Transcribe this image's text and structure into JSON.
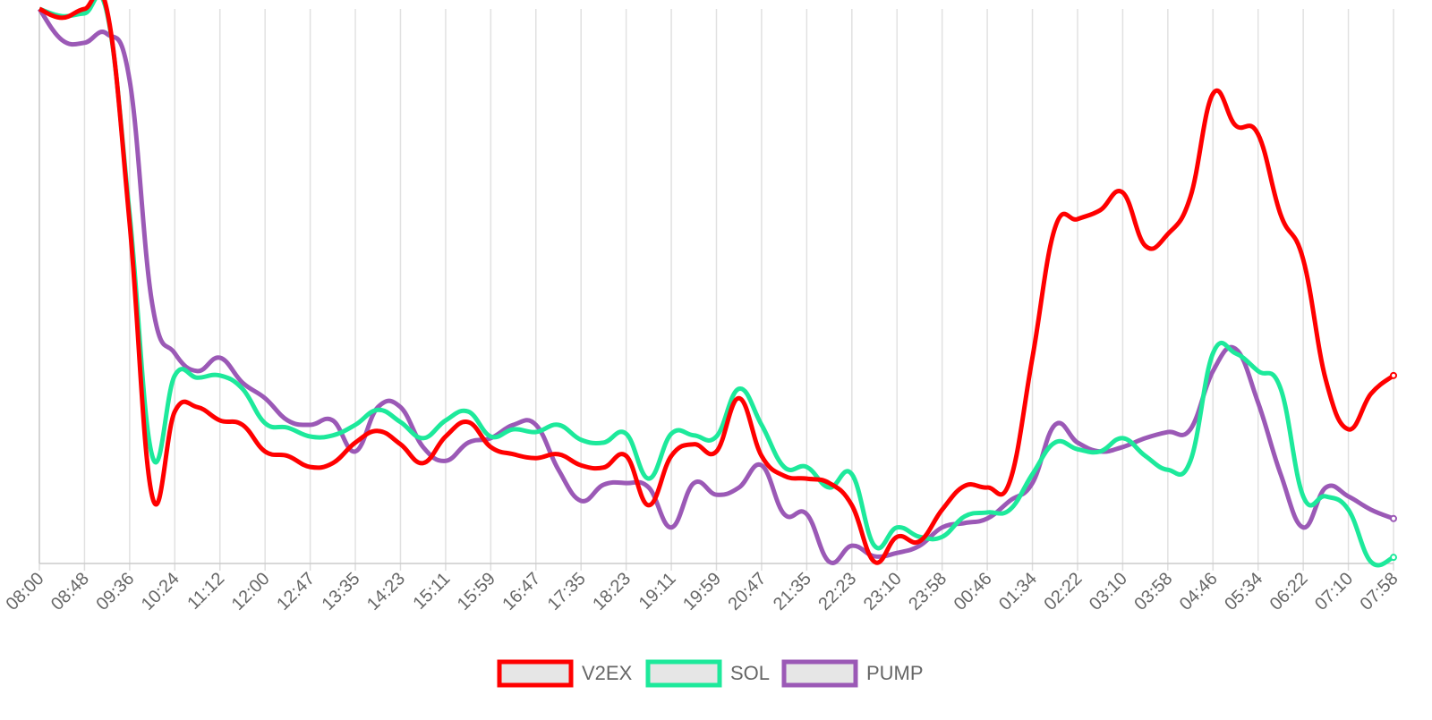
{
  "chart_data": {
    "type": "line",
    "categories": [
      "08:00",
      null,
      "08:48",
      null,
      "09:36",
      null,
      "10:24",
      null,
      "11:12",
      null,
      "12:00",
      null,
      "12:47",
      null,
      "13:35",
      null,
      "14:23",
      null,
      "15:11",
      null,
      "15:59",
      null,
      "16:47",
      null,
      "17:35",
      null,
      "18:23",
      null,
      "19:11",
      null,
      "19:59",
      null,
      "20:47",
      null,
      "21:35",
      null,
      "22:23",
      null,
      "23:10",
      null,
      "23:58",
      null,
      "00:46",
      null,
      "01:34",
      null,
      "02:22",
      null,
      "03:10",
      null,
      "03:58",
      null,
      "04:46",
      null,
      "05:34",
      null,
      "06:22",
      null,
      "07:10",
      null,
      "07:58"
    ],
    "ylim": [
      0,
      100
    ],
    "grid": true,
    "legend": "bottom",
    "series": [
      {
        "name": "V2EX",
        "color": "#ff0000",
        "values": [
          100,
          98.4,
          100,
          99.7,
          61.3,
          12.1,
          27.4,
          28.2,
          25.8,
          25,
          20.2,
          19.4,
          17.4,
          18.1,
          21.8,
          23.9,
          21.5,
          18.1,
          22.9,
          25.5,
          21,
          19.7,
          19,
          19.7,
          17.7,
          17.3,
          19.4,
          10.5,
          19.4,
          21.5,
          20.2,
          29.8,
          19.4,
          15.8,
          15.3,
          14.5,
          10.5,
          0.3,
          4.8,
          4,
          9.7,
          14,
          13.7,
          14.8,
          37.1,
          60.5,
          62.1,
          63.7,
          66.9,
          57.3,
          59.4,
          66.1,
          84.7,
          79,
          77.4,
          62.9,
          54.8,
          33.1,
          24.2,
          30.6,
          33.9
        ]
      },
      {
        "name": "SOL",
        "color": "#1de99b",
        "values": [
          100,
          98.7,
          99.2,
          99.2,
          62.9,
          19.4,
          33.9,
          33.5,
          33.9,
          31.5,
          25.3,
          24.5,
          22.9,
          23.1,
          25,
          27.7,
          25.5,
          22.6,
          25.8,
          27.4,
          22.9,
          24.2,
          23.7,
          25,
          22.3,
          21.8,
          23.4,
          15.3,
          23.4,
          23.1,
          22.9,
          31.5,
          25,
          17.4,
          17.4,
          13.7,
          16.1,
          3.2,
          6.5,
          4.8,
          4.8,
          8.5,
          9.2,
          9.7,
          16.1,
          21.8,
          20.6,
          20.2,
          22.6,
          19.4,
          16.9,
          18.5,
          37.9,
          37.9,
          34.7,
          31.5,
          12.1,
          12.1,
          9.7,
          0.3,
          1.1
        ]
      },
      {
        "name": "PUMP",
        "color": "#9b59b6",
        "values": [
          100,
          94.4,
          93.9,
          95.5,
          87.1,
          46.8,
          37.9,
          34.7,
          37.1,
          32.6,
          29.8,
          25.8,
          25,
          25.8,
          20.2,
          28.2,
          28.2,
          21,
          18.5,
          21.8,
          22.6,
          25,
          25,
          16.9,
          11.3,
          14.2,
          14.5,
          13.7,
          6.5,
          14.5,
          12.4,
          13.7,
          17.7,
          8.9,
          8.9,
          0.3,
          3.2,
          1.3,
          1.9,
          3.2,
          6.5,
          7.3,
          8.1,
          11.3,
          14.5,
          25,
          21.8,
          20.2,
          21,
          22.6,
          23.7,
          24.2,
          34.7,
          38.7,
          29,
          16.1,
          6.5,
          13.7,
          12.1,
          9.7,
          8.1
        ]
      }
    ]
  }
}
